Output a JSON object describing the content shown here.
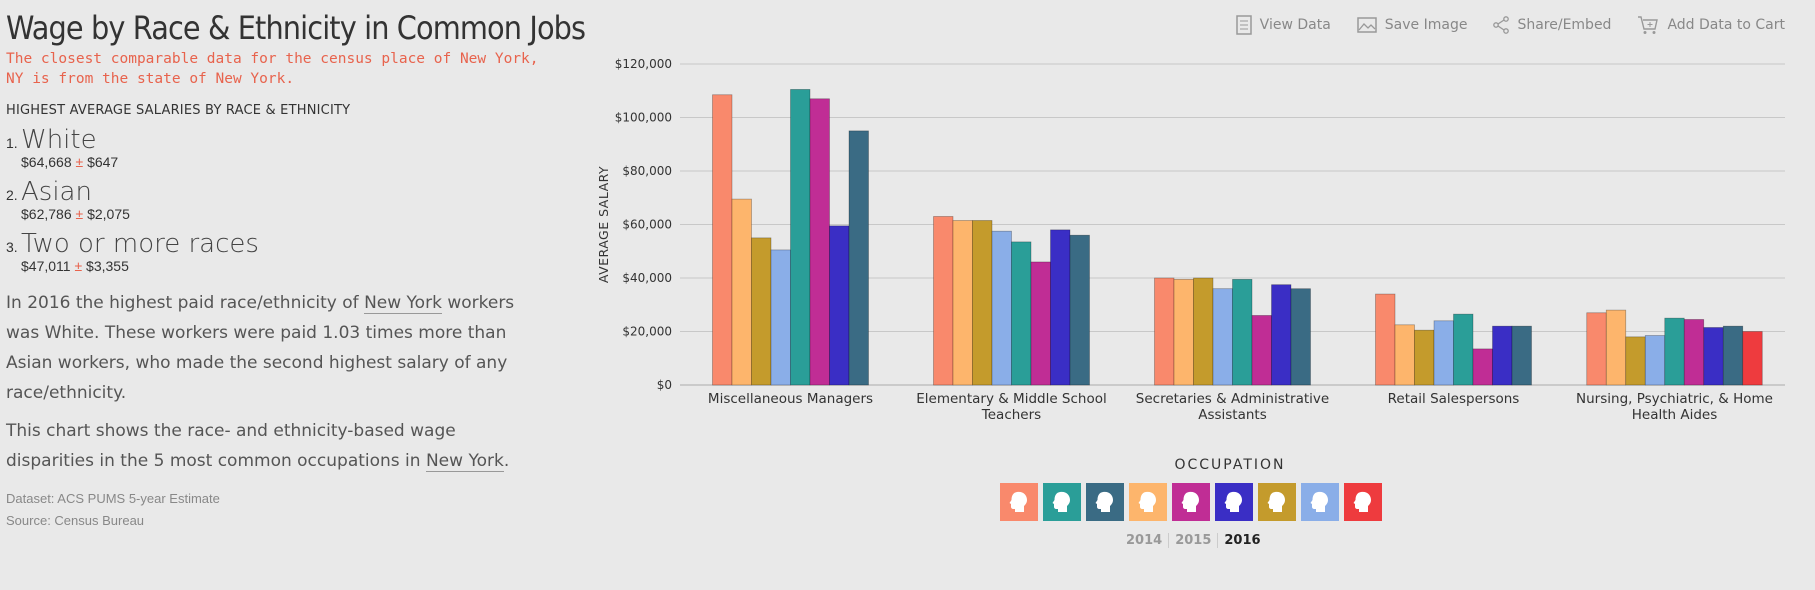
{
  "page": {
    "title": "Wage by Race & Ethnicity in Common Jobs",
    "notice": "The closest comparable data for the census place of New York, NY is from the state of New York.",
    "section_heading": "HIGHEST AVERAGE SALARIES BY RACE & ETHNICITY",
    "ranks": [
      {
        "num": "1.",
        "name": "White",
        "value": "$64,668",
        "pm": "±",
        "moe": "$647"
      },
      {
        "num": "2.",
        "name": "Asian",
        "value": "$62,786",
        "pm": "±",
        "moe": "$2,075"
      },
      {
        "num": "3.",
        "name": "Two or more races",
        "value": "$47,011",
        "pm": "±",
        "moe": "$3,355"
      }
    ],
    "para1": {
      "a": "In 2016 the highest paid race/ethnicity of ",
      "geo": "New York",
      "b": " workers was White. These workers were paid 1.03 times more than Asian workers, who made the second highest salary of any race/ethnicity."
    },
    "para2": {
      "a": "This chart shows the race- and ethnicity-based wage disparities in the 5 most common occupations in ",
      "geo": "New York",
      "b": "."
    },
    "dataset": "Dataset: ACS PUMS 5-year Estimate",
    "source": "Source: Census Bureau"
  },
  "toolbar": {
    "view_data": "View Data",
    "save_image": "Save Image",
    "share": "Share/Embed",
    "cart": "Add Data to Cart"
  },
  "legend": {
    "title": "OCCUPATION",
    "swatches": [
      "#f9896c",
      "#2a9e98",
      "#3a6b84",
      "#fdb56c",
      "#c02d95",
      "#3a2ec5",
      "#c49b2c",
      "#8aaee8",
      "#ee3b3e"
    ]
  },
  "years": [
    "2014",
    "2015",
    "2016"
  ],
  "active_year": "2016",
  "chart_data": {
    "type": "bar",
    "ylabel": "AVERAGE SALARY",
    "ylim": [
      0,
      120000
    ],
    "yticks": [
      0,
      20000,
      40000,
      60000,
      80000,
      100000,
      120000
    ],
    "ytick_labels": [
      "$0",
      "$20,000",
      "$40,000",
      "$60,000",
      "$80,000",
      "$100,000",
      "$120,000"
    ],
    "grid": true,
    "categories": [
      "Miscellaneous Managers",
      "Elementary & Middle School Teachers",
      "Secretaries & Administrative Assistants",
      "Retail Salespersons",
      "Nursing, Psychiatric, & Home Health Aides"
    ],
    "category_lines": [
      [
        "Miscellaneous Managers"
      ],
      [
        "Elementary & Middle School",
        "Teachers"
      ],
      [
        "Secretaries & Administrative",
        "Assistants"
      ],
      [
        "Retail Salespersons"
      ],
      [
        "Nursing, Psychiatric, & Home",
        "Health Aides"
      ]
    ],
    "series": [
      {
        "color": "#f9896c",
        "values": [
          108500,
          63000,
          40000,
          34000,
          27000
        ]
      },
      {
        "color": "#fdb56c",
        "values": [
          69500,
          61500,
          39500,
          22500,
          28000
        ]
      },
      {
        "color": "#c49b2c",
        "values": [
          55000,
          61500,
          40000,
          20500,
          18000
        ]
      },
      {
        "color": "#8aaee8",
        "values": [
          50500,
          57500,
          36000,
          24000,
          18500
        ]
      },
      {
        "color": "#2a9e98",
        "values": [
          110500,
          53500,
          39500,
          26500,
          25000
        ]
      },
      {
        "color": "#c02d95",
        "values": [
          107000,
          46000,
          26000,
          13500,
          24500
        ]
      },
      {
        "color": "#3a2ec5",
        "values": [
          59500,
          58000,
          37500,
          22000,
          21500
        ]
      },
      {
        "color": "#3a6b84",
        "values": [
          95000,
          56000,
          36000,
          22000,
          22000
        ]
      },
      {
        "color": "#ee3b3e",
        "values": [
          null,
          null,
          null,
          null,
          20000
        ]
      }
    ]
  }
}
